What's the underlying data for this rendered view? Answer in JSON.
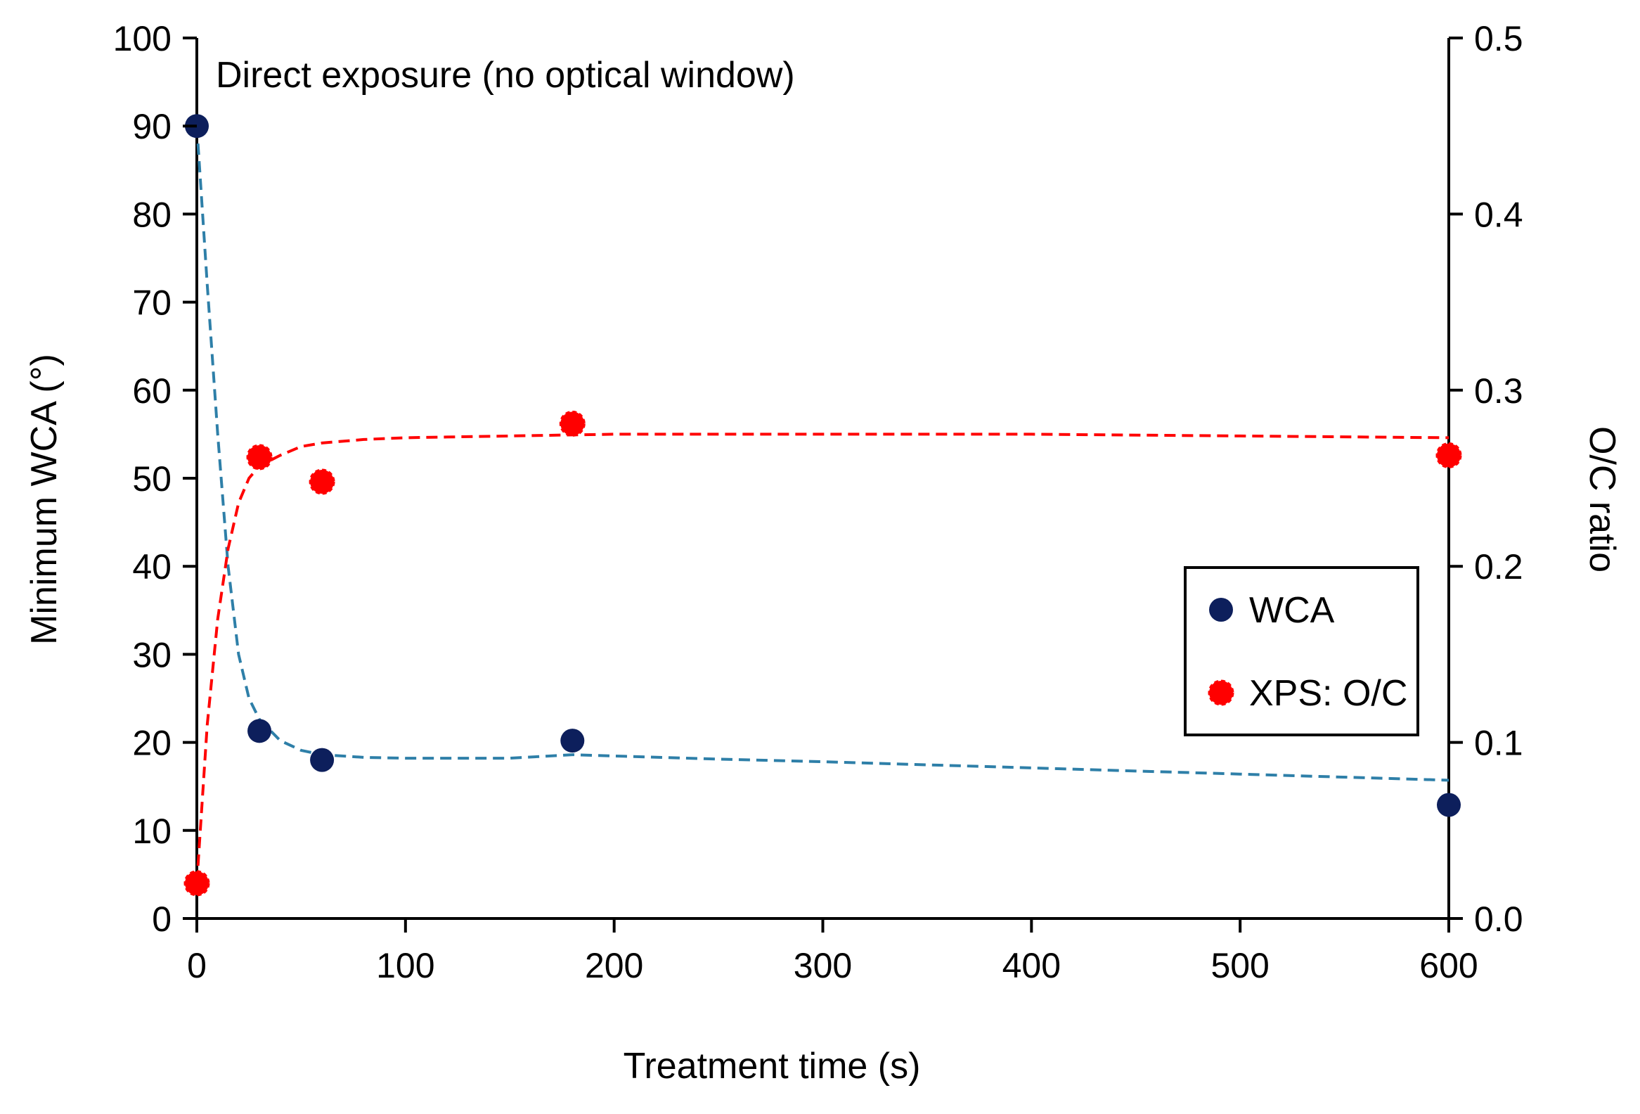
{
  "chart_data": {
    "type": "scatter",
    "annotation": "Direct exposure (no optical window)",
    "xlabel": "Treatment time (s)",
    "ylabel": "Minimum WCA (°)",
    "y2label": "O/C ratio",
    "xlim": [
      0,
      600
    ],
    "ylim": [
      0,
      100
    ],
    "y2lim": [
      0.0,
      0.5
    ],
    "xticks": [
      0,
      100,
      200,
      300,
      400,
      500,
      600
    ],
    "xtick_labels": [
      "0",
      "100",
      "200",
      "300",
      "400",
      "500",
      "600"
    ],
    "yticks": [
      0,
      10,
      20,
      30,
      40,
      50,
      60,
      70,
      80,
      90,
      100
    ],
    "ytick_labels": [
      "0",
      "10",
      "20",
      "30",
      "40",
      "50",
      "60",
      "70",
      "80",
      "90",
      "100"
    ],
    "y2ticks": [
      0.0,
      0.1,
      0.2,
      0.3,
      0.4,
      0.5
    ],
    "y2tick_labels": [
      "0.0",
      "0.1",
      "0.2",
      "0.3",
      "0.4",
      "0.5"
    ],
    "grid": false,
    "legend_position": "center-right",
    "series": [
      {
        "name": "WCA",
        "axis": "left",
        "color": "#0d1f5c",
        "marker": "circle",
        "x": [
          0,
          30,
          60,
          180,
          600
        ],
        "y": [
          90,
          21.3,
          18,
          20.2,
          12.9
        ]
      },
      {
        "name": "XPS: O/C",
        "axis": "right",
        "color": "#ff0000",
        "marker": "circle",
        "x": [
          0,
          30,
          60,
          180,
          600
        ],
        "y": [
          0.02,
          0.262,
          0.248,
          0.281,
          0.263
        ]
      }
    ],
    "trendlines": [
      {
        "axis": "left",
        "color": "#2e7fa8",
        "style": "dashed",
        "x": [
          0,
          5,
          10,
          15,
          20,
          25,
          30,
          40,
          50,
          60,
          80,
          100,
          150,
          180,
          250,
          300,
          400,
          500,
          600
        ],
        "y": [
          90,
          72,
          55,
          40,
          30,
          25,
          22.6,
          20.2,
          19.1,
          18.6,
          18.3,
          18.2,
          18.2,
          18.6,
          18.1,
          17.8,
          17.1,
          16.4,
          15.7
        ]
      },
      {
        "axis": "right",
        "color": "#ff0000",
        "style": "dashed",
        "x": [
          0,
          5,
          10,
          15,
          20,
          25,
          30,
          40,
          50,
          60,
          80,
          100,
          150,
          200,
          300,
          400,
          500,
          600
        ],
        "y": [
          0.02,
          0.11,
          0.17,
          0.21,
          0.236,
          0.25,
          0.257,
          0.263,
          0.268,
          0.27,
          0.272,
          0.273,
          0.274,
          0.275,
          0.275,
          0.275,
          0.274,
          0.273
        ]
      }
    ]
  }
}
